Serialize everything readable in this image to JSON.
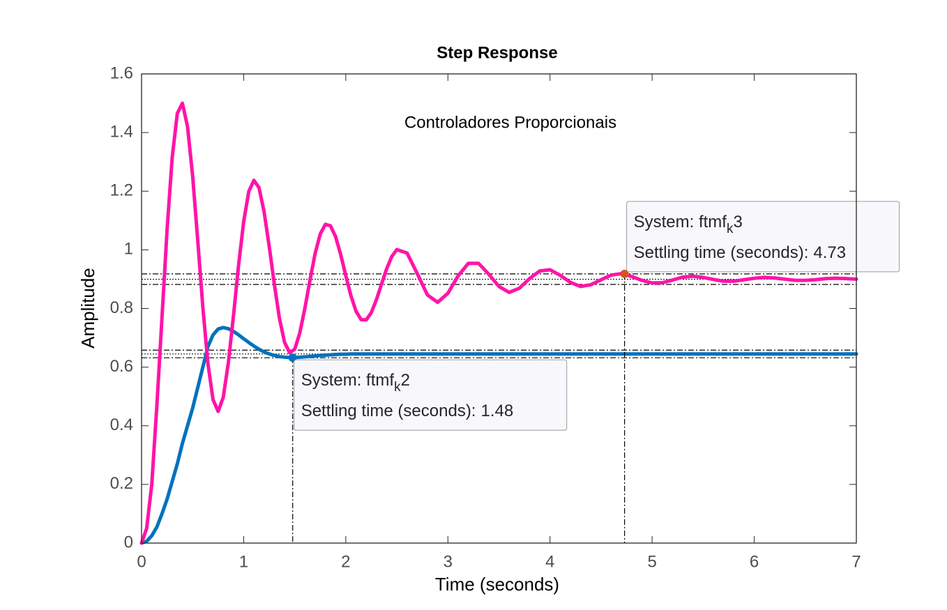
{
  "chart_data": {
    "type": "line",
    "title": "Step Response",
    "annotation": "Controladores Proporcionais",
    "xlabel": "Time (seconds)",
    "ylabel": "Amplitude",
    "xlim": [
      0,
      7
    ],
    "ylim": [
      0,
      1.6
    ],
    "xticks": [
      0,
      1,
      2,
      3,
      4,
      5,
      6,
      7
    ],
    "yticks": [
      0,
      0.2,
      0.4,
      0.6,
      0.8,
      1,
      1.2,
      1.4,
      1.6
    ],
    "grid": false,
    "x": [
      0,
      0.05,
      0.1,
      0.15,
      0.2,
      0.25,
      0.3,
      0.35,
      0.4,
      0.45,
      0.5,
      0.55,
      0.6,
      0.65,
      0.7,
      0.75,
      0.8,
      0.85,
      0.9,
      0.95,
      1,
      1.05,
      1.1,
      1.15,
      1.2,
      1.25,
      1.3,
      1.35,
      1.4,
      1.45,
      1.5,
      1.55,
      1.6,
      1.65,
      1.7,
      1.75,
      1.8,
      1.85,
      1.9,
      1.95,
      2,
      2.05,
      2.1,
      2.15,
      2.2,
      2.25,
      2.3,
      2.35,
      2.4,
      2.45,
      2.5,
      2.6,
      2.7,
      2.8,
      2.9,
      3,
      3.1,
      3.2,
      3.3,
      3.4,
      3.5,
      3.6,
      3.7,
      3.8,
      3.9,
      4,
      4.1,
      4.2,
      4.3,
      4.4,
      4.5,
      4.6,
      4.7,
      4.8,
      4.9,
      5,
      5.1,
      5.2,
      5.3,
      5.4,
      5.5,
      5.6,
      5.7,
      5.8,
      5.9,
      6,
      6.1,
      6.2,
      6.3,
      6.4,
      6.5,
      6.6,
      6.7,
      6.8,
      6.9,
      7
    ],
    "series": [
      {
        "color": "#0072bd",
        "marker_color": "#0072bd",
        "final_value": 0.645,
        "band": [
          0.632,
          0.658
        ],
        "values": [
          0,
          0.006,
          0.025,
          0.055,
          0.1,
          0.15,
          0.21,
          0.27,
          0.34,
          0.4,
          0.46,
          0.53,
          0.6,
          0.67,
          0.71,
          0.73,
          0.735,
          0.731,
          0.722,
          0.71,
          0.697,
          0.684,
          0.672,
          0.661,
          0.652,
          0.645,
          0.64,
          0.636,
          0.634,
          0.633,
          0.633,
          0.634,
          0.635,
          0.637,
          0.638,
          0.64,
          0.641,
          0.642,
          0.643,
          0.644,
          0.644,
          0.645,
          0.645,
          0.645,
          0.645,
          0.645,
          0.645,
          0.645,
          0.645,
          0.645,
          0.645,
          0.645,
          0.645,
          0.645,
          0.645,
          0.645,
          0.645,
          0.645,
          0.645,
          0.645,
          0.645,
          0.645,
          0.645,
          0.645,
          0.645,
          0.645,
          0.645,
          0.645,
          0.645,
          0.645,
          0.645,
          0.645,
          0.645,
          0.645,
          0.645,
          0.645,
          0.645,
          0.645,
          0.645,
          0.645,
          0.645,
          0.645,
          0.645,
          0.645,
          0.645,
          0.645,
          0.645,
          0.645,
          0.645,
          0.645,
          0.645,
          0.645,
          0.645,
          0.645,
          0.645,
          0.645
        ]
      },
      {
        "color": "#ff14a8",
        "marker_color": "#d95319",
        "final_value": 0.9,
        "band": [
          0.882,
          0.918
        ],
        "values": [
          0,
          0.05,
          0.2,
          0.469,
          0.769,
          1.069,
          1.315,
          1.465,
          1.5,
          1.421,
          1.253,
          1.033,
          0.805,
          0.612,
          0.489,
          0.449,
          0.497,
          0.615,
          0.775,
          0.947,
          1.096,
          1.199,
          1.237,
          1.212,
          1.13,
          1.012,
          0.884,
          0.767,
          0.685,
          0.649,
          0.661,
          0.717,
          0.802,
          0.898,
          0.988,
          1.054,
          1.087,
          1.082,
          1.045,
          0.984,
          0.912,
          0.844,
          0.791,
          0.762,
          0.761,
          0.786,
          0.83,
          0.883,
          0.935,
          0.977,
          1.001,
          0.989,
          0.919,
          0.846,
          0.821,
          0.852,
          0.911,
          0.954,
          0.954,
          0.917,
          0.875,
          0.855,
          0.869,
          0.902,
          0.928,
          0.932,
          0.913,
          0.889,
          0.875,
          0.881,
          0.898,
          0.914,
          0.919,
          0.909,
          0.896,
          0.887,
          0.888,
          0.897,
          0.907,
          0.91,
          0.906,
          0.899,
          0.893,
          0.893,
          0.898,
          0.903,
          0.906,
          0.904,
          0.9,
          0.896,
          0.896,
          0.898,
          0.902,
          0.903,
          0.902,
          0.9
        ]
      }
    ],
    "datatips": [
      {
        "series": 0,
        "prefix": "System: ftmf",
        "sub": "k",
        "suffix": "2",
        "label": "Settling time (seconds):",
        "x": 1.48,
        "y": 0.632
      },
      {
        "series": 1,
        "prefix": "System: ftmf",
        "sub": "k",
        "suffix": "3",
        "label": "Settling time (seconds):",
        "x": 4.73,
        "y": 0.918
      }
    ]
  }
}
